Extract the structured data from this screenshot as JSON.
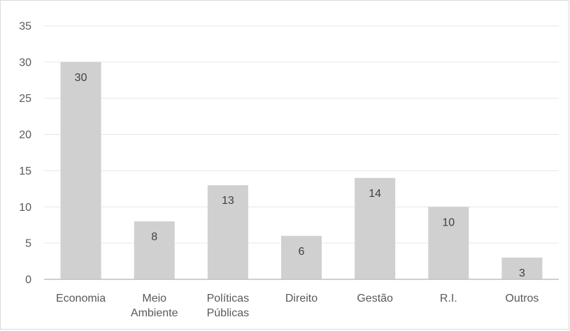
{
  "chart_data": {
    "type": "bar",
    "title": "",
    "xlabel": "",
    "ylabel": "",
    "categories": [
      [
        "Economia"
      ],
      [
        "Meio",
        "Ambiente"
      ],
      [
        "Políticas",
        "Públicas"
      ],
      [
        "Direito"
      ],
      [
        "Gestão"
      ],
      [
        "R.I."
      ],
      [
        "Outros"
      ]
    ],
    "values": [
      30,
      8,
      13,
      6,
      14,
      10,
      3
    ],
    "ylim": [
      0,
      35
    ],
    "yticks": [
      0,
      5,
      10,
      15,
      20,
      25,
      30,
      35
    ],
    "grid": true,
    "legend": "none",
    "data_labels": true,
    "colors": {
      "bar": "#d0d0d0",
      "grid": "#e6e6e6",
      "axis": "#bfbfbf"
    }
  }
}
